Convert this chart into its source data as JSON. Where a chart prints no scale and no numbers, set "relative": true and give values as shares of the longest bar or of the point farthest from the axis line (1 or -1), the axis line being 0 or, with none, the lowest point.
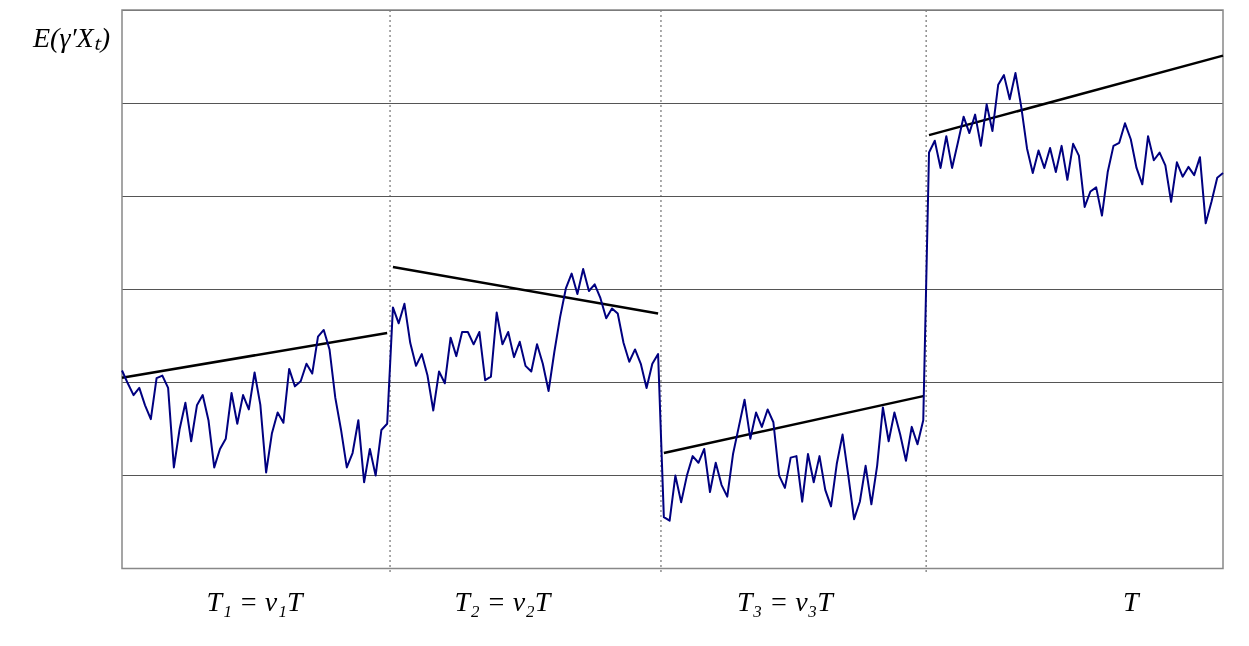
{
  "chart_data": {
    "type": "line",
    "ylabel": "E(γ′Xₜ)",
    "relative": true,
    "grid": "y",
    "legend": false,
    "marker": "none",
    "line_style": "solid",
    "categories": [
      null,
      null,
      null,
      null,
      null,
      null,
      null,
      null,
      null,
      null,
      null,
      null,
      null,
      null,
      null,
      null,
      null,
      null,
      null,
      null,
      null,
      null,
      null,
      "T₁ = ν₁T",
      null,
      null,
      null,
      null,
      null,
      null,
      null,
      null,
      null,
      null,
      null,
      null,
      null,
      null,
      null,
      null,
      null,
      null,
      null,
      null,
      null,
      null,
      null,
      null,
      null,
      null,
      null,
      null,
      null,
      null,
      null,
      null,
      null,
      null,
      null,
      null,
      null,
      null,
      null,
      null,
      null,
      null,
      "T₂ = ν₂T",
      null,
      null,
      null,
      null,
      null,
      null,
      null,
      null,
      null,
      null,
      null,
      null,
      null,
      null,
      null,
      null,
      null,
      null,
      null,
      null,
      null,
      null,
      null,
      null,
      null,
      null,
      null,
      null,
      null,
      null,
      null,
      null,
      null,
      null,
      null,
      null,
      null,
      null,
      null,
      null,
      null,
      null,
      null,
      null,
      null,
      null,
      null,
      null,
      "T₃ = ν₃T",
      null,
      null,
      null,
      null,
      null,
      null,
      null,
      null,
      null,
      null,
      null,
      null,
      null,
      null,
      null,
      null,
      null,
      null,
      null,
      null,
      null,
      null,
      null,
      null,
      null,
      null,
      null,
      null,
      null,
      null,
      null,
      null,
      null,
      null,
      null,
      null,
      null,
      null,
      null,
      null,
      null,
      null,
      null,
      null,
      null,
      null,
      null,
      null,
      null,
      null,
      null,
      null,
      null,
      null,
      null,
      null,
      null,
      null,
      null,
      "T",
      null,
      null,
      null,
      null,
      null,
      null,
      null,
      null,
      null,
      null,
      null,
      null,
      null,
      null,
      null,
      null
    ],
    "series": [
      {
        "color": "#000080",
        "values": [
          0.386,
          0.361,
          0.338,
          0.352,
          0.318,
          0.291,
          0.371,
          0.376,
          0.352,
          0.197,
          0.272,
          0.323,
          0.248,
          0.318,
          0.338,
          0.289,
          0.197,
          0.233,
          0.253,
          0.342,
          0.282,
          0.338,
          0.31,
          0.382,
          0.319,
          0.187,
          0.263,
          0.304,
          0.284,
          0.389,
          0.355,
          0.365,
          0.399,
          0.38,
          0.452,
          0.465,
          0.427,
          0.333,
          0.27,
          0.197,
          0.225,
          0.289,
          0.168,
          0.233,
          0.181,
          0.27,
          0.282,
          0.509,
          0.478,
          0.516,
          0.44,
          0.395,
          0.418,
          0.376,
          0.308,
          0.384,
          0.361,
          0.45,
          0.414,
          0.461,
          0.461,
          0.437,
          0.461,
          0.367,
          0.374,
          0.499,
          0.437,
          0.461,
          0.412,
          0.442,
          0.395,
          0.384,
          0.437,
          0.399,
          0.346,
          0.422,
          0.49,
          0.546,
          0.575,
          0.535,
          0.584,
          0.541,
          0.554,
          0.527,
          0.488,
          0.507,
          0.497,
          0.44,
          0.403,
          0.427,
          0.399,
          0.352,
          0.399,
          0.418,
          0.1,
          0.093,
          0.181,
          0.129,
          0.181,
          0.219,
          0.206,
          0.233,
          0.149,
          0.206,
          0.163,
          0.14,
          0.223,
          0.276,
          0.329,
          0.253,
          0.304,
          0.276,
          0.31,
          0.285,
          0.181,
          0.157,
          0.216,
          0.219,
          0.13,
          0.223,
          0.168,
          0.219,
          0.153,
          0.121,
          0.204,
          0.261,
          0.181,
          0.096,
          0.13,
          0.2,
          0.125,
          0.2,
          0.314,
          0.248,
          0.304,
          0.261,
          0.21,
          0.276,
          0.242,
          0.289,
          0.811,
          0.834,
          0.781,
          0.843,
          0.781,
          0.83,
          0.881,
          0.849,
          0.885,
          0.824,
          0.905,
          0.853,
          0.943,
          0.962,
          0.915,
          0.966,
          0.9,
          0.819,
          0.771,
          0.815,
          0.781,
          0.82,
          0.773,
          0.824,
          0.758,
          0.828,
          0.805,
          0.705,
          0.735,
          0.743,
          0.688,
          0.773,
          0.824,
          0.83,
          0.868,
          0.837,
          0.781,
          0.749,
          0.843,
          0.796,
          0.811,
          0.786,
          0.715,
          0.792,
          0.764,
          0.783,
          0.767,
          0.802,
          0.673,
          0.715,
          0.762,
          0.771
        ]
      },
      {
        "color": "#000000",
        "values": [
          0.372,
          null,
          null,
          null,
          null,
          null,
          null,
          null,
          null,
          null,
          null,
          null,
          null,
          null,
          null,
          null,
          null,
          null,
          null,
          null,
          null,
          null,
          null,
          null,
          null,
          null,
          null,
          null,
          null,
          null,
          null,
          null,
          null,
          null,
          null,
          null,
          null,
          null,
          null,
          null,
          null,
          null,
          null,
          null,
          null,
          null,
          0.459,
          null,
          null,
          null,
          null,
          null,
          null,
          null,
          null,
          null,
          null,
          null,
          null,
          null,
          null,
          null,
          null,
          null,
          null,
          null,
          null,
          null,
          null,
          null,
          null,
          null,
          null,
          null,
          null,
          null,
          null,
          null,
          null,
          null,
          null,
          null,
          null,
          null,
          null,
          null,
          null,
          null,
          null,
          null,
          null,
          null,
          null,
          null,
          null,
          null,
          null,
          null,
          null,
          null,
          null,
          null,
          null,
          null,
          null,
          null,
          null,
          null,
          null,
          null,
          null,
          null,
          null,
          null,
          null,
          null,
          null,
          null,
          null,
          null,
          null,
          null,
          null,
          null,
          null,
          null,
          null,
          null,
          null,
          null,
          null,
          null,
          null,
          null,
          null,
          null,
          null,
          null,
          null,
          null,
          null,
          null,
          null,
          null,
          null,
          null,
          null,
          null,
          null,
          null,
          null,
          null,
          null,
          null,
          null,
          null,
          null,
          null,
          null,
          null,
          null,
          null,
          null,
          null,
          null,
          null,
          null,
          null,
          null,
          null,
          null,
          null,
          null,
          null,
          null,
          null,
          null,
          null,
          null,
          null,
          null,
          null,
          null,
          null,
          null,
          null,
          null,
          null,
          null,
          null,
          null,
          null
        ]
      },
      {
        "color": "#000000",
        "values": [
          null,
          null,
          null,
          null,
          null,
          null,
          null,
          null,
          null,
          null,
          null,
          null,
          null,
          null,
          null,
          null,
          null,
          null,
          null,
          null,
          null,
          null,
          null,
          null,
          null,
          null,
          null,
          null,
          null,
          null,
          null,
          null,
          null,
          null,
          null,
          null,
          null,
          null,
          null,
          null,
          null,
          null,
          null,
          null,
          null,
          null,
          null,
          0.588,
          null,
          null,
          null,
          null,
          null,
          null,
          null,
          null,
          null,
          null,
          null,
          null,
          null,
          null,
          null,
          null,
          null,
          null,
          null,
          null,
          null,
          null,
          null,
          null,
          null,
          null,
          null,
          null,
          null,
          null,
          null,
          null,
          null,
          null,
          null,
          null,
          null,
          null,
          null,
          null,
          null,
          null,
          null,
          null,
          null,
          0.497,
          null,
          null,
          null,
          null,
          null,
          null,
          null,
          null,
          null,
          null,
          null,
          null,
          null,
          null,
          null,
          null,
          null,
          null,
          null,
          null,
          null,
          null,
          null,
          null,
          null,
          null,
          null,
          null,
          null,
          null,
          null,
          null,
          null,
          null,
          null,
          null,
          null,
          null,
          null,
          null,
          null,
          null,
          null,
          null,
          null,
          null,
          null,
          null,
          null,
          null,
          null,
          null,
          null,
          null,
          null,
          null,
          null,
          null,
          null,
          null,
          null,
          null,
          null,
          null,
          null,
          null,
          null,
          null,
          null,
          null,
          null,
          null,
          null,
          null,
          null,
          null,
          null,
          null,
          null,
          null,
          null,
          null,
          null,
          null,
          null,
          null,
          null,
          null,
          null,
          null,
          null,
          null,
          null,
          null,
          null,
          null,
          null,
          null
        ]
      },
      {
        "color": "#000000",
        "values": [
          null,
          null,
          null,
          null,
          null,
          null,
          null,
          null,
          null,
          null,
          null,
          null,
          null,
          null,
          null,
          null,
          null,
          null,
          null,
          null,
          null,
          null,
          null,
          null,
          null,
          null,
          null,
          null,
          null,
          null,
          null,
          null,
          null,
          null,
          null,
          null,
          null,
          null,
          null,
          null,
          null,
          null,
          null,
          null,
          null,
          null,
          null,
          null,
          null,
          null,
          null,
          null,
          null,
          null,
          null,
          null,
          null,
          null,
          null,
          null,
          null,
          null,
          null,
          null,
          null,
          null,
          null,
          null,
          null,
          null,
          null,
          null,
          null,
          null,
          null,
          null,
          null,
          null,
          null,
          null,
          null,
          null,
          null,
          null,
          null,
          null,
          null,
          null,
          null,
          null,
          null,
          null,
          null,
          null,
          0.225,
          null,
          null,
          null,
          null,
          null,
          null,
          null,
          null,
          null,
          null,
          null,
          null,
          null,
          null,
          null,
          null,
          null,
          null,
          null,
          null,
          null,
          null,
          null,
          null,
          null,
          null,
          null,
          null,
          null,
          null,
          null,
          null,
          null,
          null,
          null,
          null,
          null,
          null,
          null,
          null,
          null,
          null,
          null,
          null,
          0.336,
          null,
          null,
          null,
          null,
          null,
          null,
          null,
          null,
          null,
          null,
          null,
          null,
          null,
          null,
          null,
          null,
          null,
          null,
          null,
          null,
          null,
          null,
          null,
          null,
          null,
          null,
          null,
          null,
          null,
          null,
          null,
          null,
          null,
          null,
          null,
          null,
          null,
          null,
          null,
          null,
          null,
          null,
          null,
          null,
          null,
          null,
          null,
          null,
          null,
          null,
          null,
          null
        ]
      },
      {
        "color": "#000000",
        "values": [
          null,
          null,
          null,
          null,
          null,
          null,
          null,
          null,
          null,
          null,
          null,
          null,
          null,
          null,
          null,
          null,
          null,
          null,
          null,
          null,
          null,
          null,
          null,
          null,
          null,
          null,
          null,
          null,
          null,
          null,
          null,
          null,
          null,
          null,
          null,
          null,
          null,
          null,
          null,
          null,
          null,
          null,
          null,
          null,
          null,
          null,
          null,
          null,
          null,
          null,
          null,
          null,
          null,
          null,
          null,
          null,
          null,
          null,
          null,
          null,
          null,
          null,
          null,
          null,
          null,
          null,
          null,
          null,
          null,
          null,
          null,
          null,
          null,
          null,
          null,
          null,
          null,
          null,
          null,
          null,
          null,
          null,
          null,
          null,
          null,
          null,
          null,
          null,
          null,
          null,
          null,
          null,
          null,
          null,
          null,
          null,
          null,
          null,
          null,
          null,
          null,
          null,
          null,
          null,
          null,
          null,
          null,
          null,
          null,
          null,
          null,
          null,
          null,
          null,
          null,
          null,
          null,
          null,
          null,
          null,
          null,
          null,
          null,
          null,
          null,
          null,
          null,
          null,
          null,
          null,
          null,
          null,
          null,
          null,
          null,
          null,
          null,
          null,
          null,
          null,
          0.845,
          null,
          null,
          null,
          null,
          null,
          null,
          null,
          null,
          null,
          null,
          null,
          null,
          null,
          null,
          null,
          null,
          null,
          null,
          null,
          null,
          null,
          null,
          null,
          null,
          null,
          null,
          null,
          null,
          null,
          null,
          null,
          null,
          null,
          null,
          null,
          null,
          null,
          null,
          null,
          null,
          null,
          null,
          null,
          null,
          null,
          null,
          null,
          null,
          null,
          null,
          1.0
        ]
      }
    ]
  }
}
